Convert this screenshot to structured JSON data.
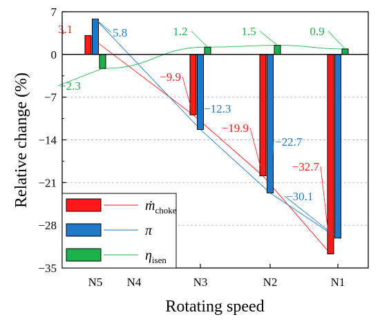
{
  "chart_data": {
    "type": "bar",
    "xlabel": "Rotating speed",
    "ylabel": "Relative change (%)",
    "categories": [
      "N5",
      "N4",
      "N3",
      "N2",
      "N1"
    ],
    "ylim": [
      -35,
      7
    ],
    "yticks": [
      "7",
      "0",
      "−7",
      "−14",
      "−21",
      "−28",
      "−35"
    ],
    "ytick_values": [
      7,
      0,
      -7,
      -14,
      -21,
      -28,
      -35
    ],
    "grid": "horizontal dashed",
    "legend_position": "bottom-left",
    "series": [
      {
        "key": "mchoke",
        "legend_main": "ṁ",
        "legend_sub": "choke",
        "color": "#ff1a1a",
        "values": [
          3.1,
          null,
          -9.9,
          -19.9,
          -32.7
        ],
        "labels": [
          "3.1",
          "",
          "−9.9",
          "−19.9",
          "−32.7"
        ]
      },
      {
        "key": "pi",
        "legend_main": "π",
        "legend_sub": "",
        "color": "#1f78c8",
        "values": [
          5.8,
          null,
          -12.3,
          -22.7,
          -30.1
        ],
        "labels": [
          "5.8",
          "",
          "−12.3",
          "−22.7",
          "−30.1"
        ]
      },
      {
        "key": "eta",
        "legend_main": "η",
        "legend_sub": "isen",
        "color": "#1bb24b",
        "values": [
          -2.3,
          null,
          1.2,
          1.5,
          0.9
        ],
        "labels": [
          "−2.3",
          "",
          "1.2",
          "1.5",
          "0.9"
        ]
      }
    ]
  }
}
